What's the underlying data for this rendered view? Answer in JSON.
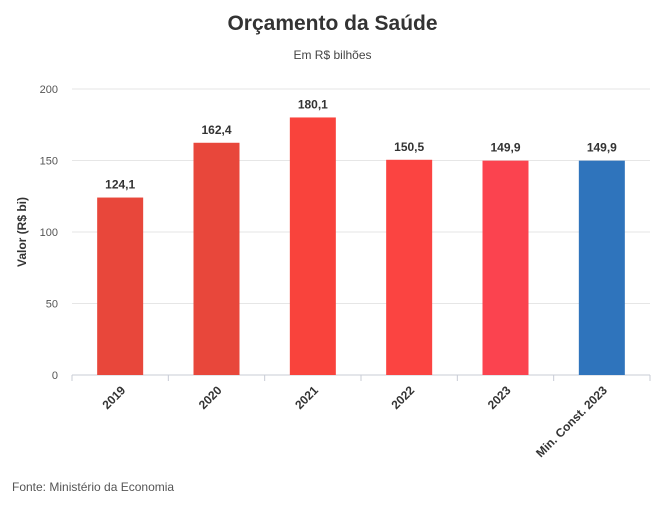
{
  "chart_data": {
    "type": "bar",
    "title": "Orçamento da Saúde",
    "subtitle": "Em R$ bilhões",
    "ylabel": "Valor (R$ bi)",
    "xlabel": "",
    "categories": [
      "2019",
      "2020",
      "2021",
      "2022",
      "2023",
      "Min. Const. 2023"
    ],
    "values": [
      124.1,
      162.4,
      180.1,
      150.5,
      149.9,
      149.9
    ],
    "data_labels": [
      "124,1",
      "162,4",
      "180,1",
      "150,5",
      "149,9",
      "149,9"
    ],
    "colors": [
      "#e8473b",
      "#e8473b",
      "#f9433c",
      "#fb4441",
      "#fb434f",
      "#2f74bc"
    ],
    "ylim": [
      0,
      200
    ],
    "yticks": [
      0,
      50,
      100,
      150,
      200
    ],
    "grid": true,
    "legend": "none"
  },
  "footer": {
    "source": "Fonte: Ministério da Economia"
  }
}
